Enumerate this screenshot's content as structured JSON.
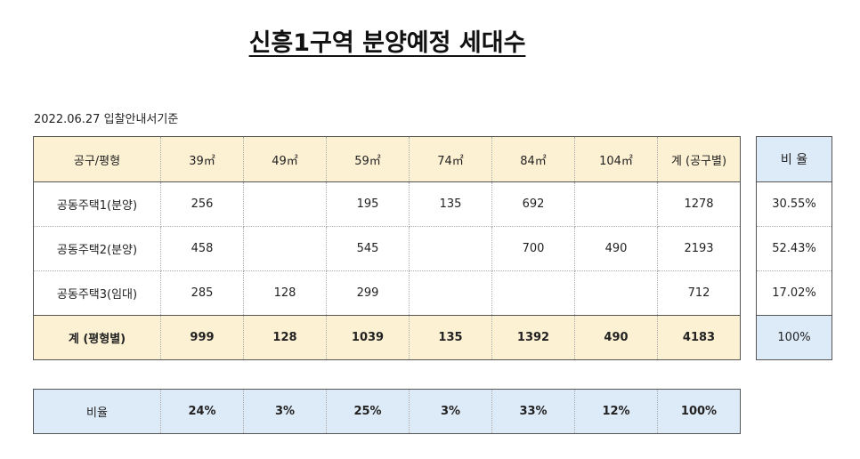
{
  "title": "신흥1구역 분양예정 세대수",
  "subtitle": "2022.06.27 입찰안내서기준",
  "table": {
    "headers": [
      "공구/평형",
      "39㎡",
      "49㎡",
      "59㎡",
      "74㎡",
      "84㎡",
      "104㎡",
      "계 (공구별)"
    ],
    "rows": [
      [
        "공동주택1(분양)",
        "256",
        "",
        "195",
        "135",
        "692",
        "",
        "1278"
      ],
      [
        "공동주택2(분양)",
        "458",
        "",
        "545",
        "",
        "700",
        "490",
        "2193"
      ],
      [
        "공동주택3(임대)",
        "285",
        "128",
        "299",
        "",
        "",
        "",
        "712"
      ]
    ],
    "total": [
      "계 (평형별)",
      "999",
      "128",
      "1039",
      "135",
      "1392",
      "490",
      "4183"
    ]
  },
  "ratio": {
    "header": "비 율",
    "rows": [
      "30.55%",
      "52.43%",
      "17.02%"
    ],
    "total": "100%"
  },
  "share": [
    "비율",
    "24%",
    "3%",
    "25%",
    "3%",
    "33%",
    "12%",
    "100%"
  ]
}
